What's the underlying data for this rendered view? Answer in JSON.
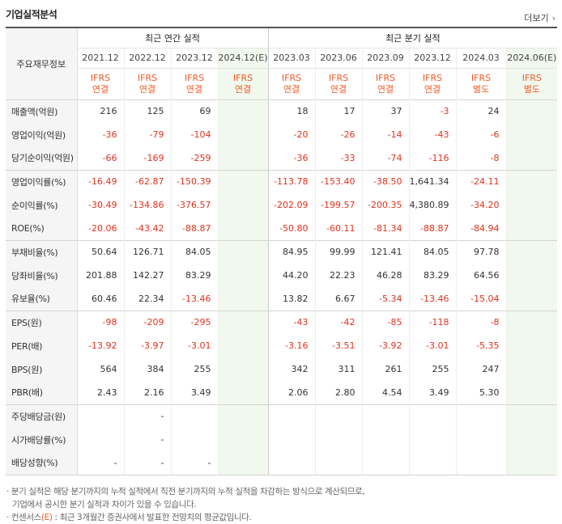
{
  "header": {
    "title": "기업실적분석",
    "more_label": "더보기"
  },
  "table": {
    "label_header": "주요재무정보",
    "groups": {
      "annual": "최근 연간 실적",
      "quarterly": "최근 분기 실적"
    },
    "periods": [
      "2021.12",
      "2022.12",
      "2023.12",
      "2024.12(E)",
      "2023.03",
      "2023.06",
      "2023.09",
      "2023.12",
      "2024.03",
      "2024.06(E)"
    ],
    "ifrs": [
      {
        "a": "IFRS",
        "b": "연결"
      },
      {
        "a": "IFRS",
        "b": "연결"
      },
      {
        "a": "IFRS",
        "b": "연결"
      },
      {
        "a": "IFRS",
        "b": "연결"
      },
      {
        "a": "IFRS",
        "b": "연결"
      },
      {
        "a": "IFRS",
        "b": "연결"
      },
      {
        "a": "IFRS",
        "b": "연결"
      },
      {
        "a": "IFRS",
        "b": "연결"
      },
      {
        "a": "IFRS",
        "b": "별도"
      },
      {
        "a": "IFRS",
        "b": "별도"
      }
    ],
    "rows": [
      {
        "label": "매출액(억원)",
        "values": [
          "216",
          "125",
          "69",
          "",
          "18",
          "17",
          "37",
          "-3",
          "24",
          ""
        ]
      },
      {
        "label": "영업이익(억원)",
        "values": [
          "-36",
          "-79",
          "-104",
          "",
          "-20",
          "-26",
          "-14",
          "-43",
          "-6",
          ""
        ]
      },
      {
        "label": "당기순이익(억원)",
        "values": [
          "-66",
          "-169",
          "-259",
          "",
          "-36",
          "-33",
          "-74",
          "-116",
          "-8",
          ""
        ]
      },
      {
        "label": "영업이익률(%)",
        "values": [
          "-16.49",
          "-62.87",
          "-150.39",
          "",
          "-113.78",
          "-153.40",
          "-38.50",
          "1,641.34",
          "-24.11",
          ""
        ]
      },
      {
        "label": "순이익률(%)",
        "values": [
          "-30.49",
          "-134.86",
          "-376.57",
          "",
          "-202.09",
          "-199.57",
          "-200.35",
          "4,380.89",
          "-34.20",
          ""
        ]
      },
      {
        "label": "ROE(%)",
        "values": [
          "-20.06",
          "-43.42",
          "-88.87",
          "",
          "-50.80",
          "-60.11",
          "-81.34",
          "-88.87",
          "-84.94",
          ""
        ]
      },
      {
        "label": "부채비율(%)",
        "values": [
          "50.64",
          "126.71",
          "84.05",
          "",
          "84.95",
          "99.99",
          "121.41",
          "84.05",
          "97.78",
          ""
        ]
      },
      {
        "label": "당좌비율(%)",
        "values": [
          "201.88",
          "142.27",
          "83.29",
          "",
          "44.20",
          "22.23",
          "46.28",
          "83.29",
          "64.56",
          ""
        ]
      },
      {
        "label": "유보율(%)",
        "values": [
          "60.46",
          "22.34",
          "-13.46",
          "",
          "13.82",
          "6.67",
          "-5.34",
          "-13.46",
          "-15.04",
          ""
        ]
      },
      {
        "label": "EPS(원)",
        "values": [
          "-98",
          "-209",
          "-295",
          "",
          "-43",
          "-42",
          "-85",
          "-118",
          "-8",
          ""
        ]
      },
      {
        "label": "PER(배)",
        "values": [
          "-13.92",
          "-3.97",
          "-3.01",
          "",
          "-3.16",
          "-3.51",
          "-3.92",
          "-3.01",
          "-5.35",
          ""
        ]
      },
      {
        "label": "BPS(원)",
        "values": [
          "564",
          "384",
          "255",
          "",
          "342",
          "311",
          "261",
          "255",
          "247",
          ""
        ]
      },
      {
        "label": "PBR(배)",
        "values": [
          "2.43",
          "2.16",
          "3.49",
          "",
          "2.06",
          "2.80",
          "4.54",
          "3.49",
          "5.30",
          ""
        ]
      },
      {
        "label": "주당배당금(원)",
        "values": [
          "",
          "-",
          "",
          "",
          "",
          "",
          "",
          "",
          "",
          ""
        ]
      },
      {
        "label": "시가배당률(%)",
        "values": [
          "",
          "-",
          "",
          "",
          "",
          "",
          "",
          "",
          "",
          ""
        ]
      },
      {
        "label": "배당성향(%)",
        "values": [
          "-",
          "-",
          "-",
          "",
          "",
          "",
          "",
          "",
          "",
          ""
        ]
      }
    ]
  },
  "notes": {
    "line1": "· 분기 실적은 해당 분기까지의 누적 실적에서 직전 분기까지의 누적 실적을 차감하는 방식으로 계산되므로,",
    "line2": "기업에서 공시한 분기 실적과 차이가 있을 수 있습니다.",
    "line3_prefix": "· 컨센서스",
    "line3_e": "(E)",
    "line3_suffix": " : 최근 3개월간 증권사에서 발표한 전망치의 평균값입니다."
  }
}
